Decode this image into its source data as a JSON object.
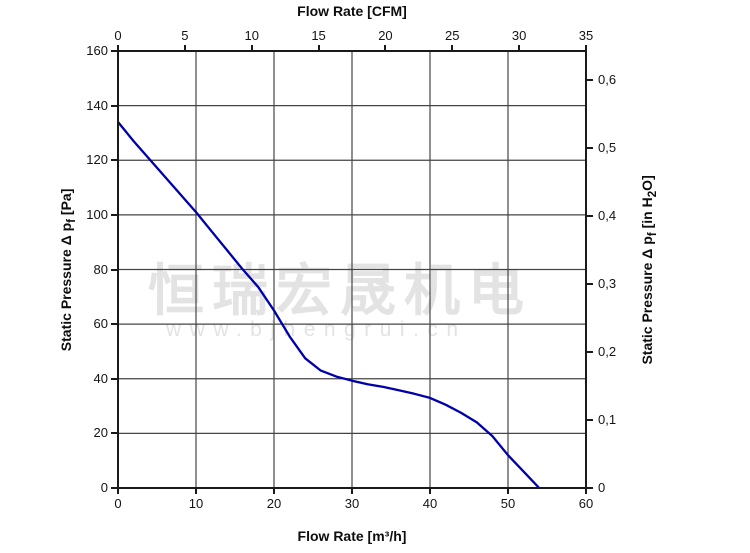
{
  "titles": {
    "top_axis": "Flow Rate [CFM]",
    "bottom_axis": "Flow Rate [m³/h]"
  },
  "axis_left_label": {
    "pre": "Static Pressure Δ p",
    "sub": "f",
    "post": " [Pa]"
  },
  "axis_right_label": {
    "pre": "Static Pressure Δ p",
    "sub": "f",
    "mid": " [in H",
    "sub2": "2",
    "post": "O]"
  },
  "watermark": {
    "line1": "恒瑞宏晟机电",
    "line2": "www.bjhengrui.cn"
  },
  "colors": {
    "curve": "#0000AA",
    "grid": "#454545",
    "axis": "#1a1a1a",
    "text": "#141414",
    "watermark": "#e3e3e3",
    "background": "#ffffff"
  },
  "chart_data": {
    "type": "line",
    "title": "Fan performance curve: static pressure vs flow rate",
    "xlabel_top": "Flow Rate [CFM]",
    "xlabel_bottom": "Flow Rate [m³/h]",
    "ylabel_left": "Static Pressure Δ pf [Pa]",
    "ylabel_right": "Static Pressure Δ pf [in H2O]",
    "x_bottom": {
      "min": 0,
      "max": 60,
      "ticks": [
        0,
        10,
        20,
        30,
        40,
        50,
        60
      ],
      "tick_labels": [
        "0",
        "10",
        "20",
        "30",
        "40",
        "50",
        "60"
      ]
    },
    "x_top": {
      "min": 0,
      "max": 35,
      "ticks": [
        0,
        5,
        10,
        15,
        20,
        25,
        30,
        35
      ],
      "tick_labels": [
        "0",
        "5",
        "10",
        "15",
        "20",
        "25",
        "30",
        "35"
      ]
    },
    "y_left": {
      "min": 0,
      "max": 160,
      "ticks": [
        0,
        20,
        40,
        60,
        80,
        100,
        120,
        140,
        160
      ],
      "tick_labels": [
        "0",
        "20",
        "40",
        "60",
        "80",
        "100",
        "120",
        "140",
        "160"
      ]
    },
    "y_right": {
      "unit": "in H2O",
      "ticks": [
        {
          "label": "0",
          "pa": 0
        },
        {
          "label": "0,1",
          "pa": 24.91
        },
        {
          "label": "0,2",
          "pa": 49.82
        },
        {
          "label": "0,3",
          "pa": 74.73
        },
        {
          "label": "0,4",
          "pa": 99.64
        },
        {
          "label": "0,5",
          "pa": 124.54
        },
        {
          "label": "0,6",
          "pa": 149.45
        }
      ]
    },
    "grid_x_values": [
      10,
      20,
      30,
      40,
      50
    ],
    "grid_y_values": [
      20,
      40,
      60,
      80,
      100,
      120,
      140
    ],
    "grid": true,
    "legend": false,
    "series": [
      {
        "name": "static-pressure-curve",
        "points": [
          [
            0,
            134
          ],
          [
            2,
            127
          ],
          [
            4,
            120.5
          ],
          [
            6,
            114
          ],
          [
            8,
            107.5
          ],
          [
            10,
            101
          ],
          [
            12,
            94
          ],
          [
            14,
            87
          ],
          [
            16,
            80
          ],
          [
            18,
            73.5
          ],
          [
            20,
            65
          ],
          [
            22,
            55.5
          ],
          [
            24,
            47.5
          ],
          [
            26,
            43
          ],
          [
            28,
            40.8
          ],
          [
            30,
            39.3
          ],
          [
            32,
            38
          ],
          [
            34,
            37
          ],
          [
            36,
            35.8
          ],
          [
            38,
            34.5
          ],
          [
            40,
            33
          ],
          [
            42,
            30.5
          ],
          [
            44,
            27.5
          ],
          [
            46,
            24
          ],
          [
            48,
            19
          ],
          [
            50,
            12
          ],
          [
            52,
            6
          ],
          [
            54,
            0
          ]
        ]
      }
    ]
  }
}
